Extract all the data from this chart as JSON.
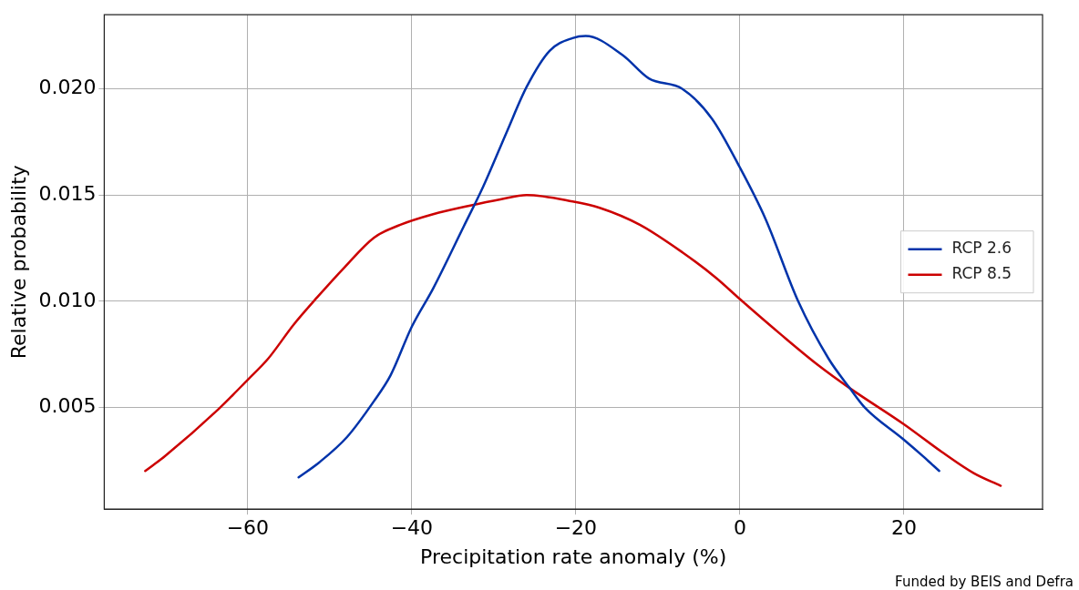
{
  "chart_data": {
    "type": "line",
    "xlabel": "Precipitation rate anomaly (%)",
    "ylabel": "Relative probability",
    "xlim": [
      -77.5,
      36.9
    ],
    "ylim": [
      0.0002,
      0.0235
    ],
    "xticks": [
      {
        "value": -60,
        "label": "−60"
      },
      {
        "value": -40,
        "label": "−40"
      },
      {
        "value": -20,
        "label": "−20"
      },
      0,
      20
    ],
    "yticks": [
      {
        "value": 0.005,
        "label": "0.005"
      },
      {
        "value": 0.01,
        "label": "0.010"
      },
      {
        "value": 0.015,
        "label": "0.015"
      },
      {
        "value": 0.02,
        "label": "0.020"
      }
    ],
    "grid": true,
    "legend": "right",
    "marker": "none",
    "line_style": "solid",
    "annotations": [
      "Funded by BEIS and Defra"
    ],
    "series": [
      {
        "name": "RCP 2.6",
        "color": "#0033aa",
        "x": [
          -53.8,
          -51.3,
          -47.9,
          -44.6,
          -42.6,
          -40.0,
          -37.4,
          -33.7,
          -31.3,
          -28.4,
          -26.0,
          -23.2,
          -20.4,
          -18.8,
          -14.3,
          -11.1,
          -7.0,
          -3.4,
          0,
          3.1,
          7.1,
          10.8,
          13.4,
          15.2,
          19.9,
          22.3,
          24.3
        ],
        "values": [
          0.0017,
          0.0024,
          0.0036,
          0.0053,
          0.0065,
          0.0088,
          0.0106,
          0.0135,
          0.0154,
          0.018,
          0.0201,
          0.0218,
          0.0224,
          0.0225,
          0.0216,
          0.0205,
          0.02,
          0.0186,
          0.0163,
          0.0139,
          0.01,
          0.0073,
          0.0059,
          0.005,
          0.0035,
          0.0027,
          0.002
        ]
      },
      {
        "name": "RCP 8.5",
        "color": "#cc0000",
        "x": [
          -72.5,
          -70.1,
          -63.6,
          -60.0,
          -57.5,
          -54.4,
          -51.5,
          -48.2,
          -44.6,
          -41.4,
          -37.4,
          -33.0,
          -29.2,
          -26.0,
          -20.4,
          -17.1,
          -12.2,
          -7.0,
          -2.9,
          0,
          5.1,
          9.5,
          13.4,
          20.0,
          24.6,
          28.5,
          31.8
        ],
        "values": [
          0.002,
          0.0027,
          0.0049,
          0.0063,
          0.0073,
          0.0089,
          0.0102,
          0.0116,
          0.013,
          0.0136,
          0.0141,
          0.0145,
          0.0148,
          0.015,
          0.0147,
          0.0144,
          0.0136,
          0.0123,
          0.0111,
          0.0101,
          0.0084,
          0.007,
          0.0059,
          0.0042,
          0.0029,
          0.0019,
          0.0013
        ]
      }
    ]
  }
}
